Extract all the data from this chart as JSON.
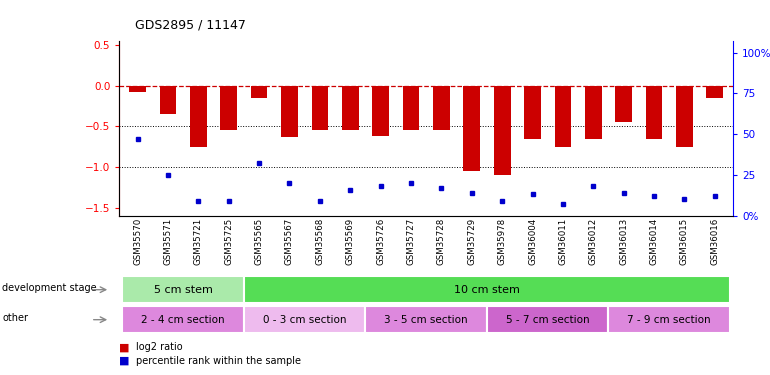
{
  "title": "GDS2895 / 11147",
  "samples": [
    "GSM35570",
    "GSM35571",
    "GSM35721",
    "GSM35725",
    "GSM35565",
    "GSM35567",
    "GSM35568",
    "GSM35569",
    "GSM35726",
    "GSM35727",
    "GSM35728",
    "GSM35729",
    "GSM35978",
    "GSM36004",
    "GSM36011",
    "GSM36012",
    "GSM36013",
    "GSM36014",
    "GSM36015",
    "GSM36016"
  ],
  "log2_ratio": [
    -0.07,
    -0.35,
    -0.75,
    -0.55,
    -0.15,
    -0.63,
    -0.55,
    -0.55,
    -0.62,
    -0.55,
    -0.55,
    -1.05,
    -1.1,
    -0.65,
    -0.75,
    -0.65,
    -0.45,
    -0.65,
    -0.75,
    -0.15
  ],
  "percentile": [
    47,
    25,
    9,
    9,
    32,
    20,
    9,
    16,
    18,
    20,
    17,
    14,
    9,
    13,
    7,
    18,
    14,
    12,
    10,
    12
  ],
  "ylim_left": [
    -1.6,
    0.55
  ],
  "ylim_right": [
    0,
    107
  ],
  "bar_color": "#cc0000",
  "dot_color": "#0000cc",
  "hline_color": "#cc0000",
  "dev_stage_groups": [
    {
      "label": "5 cm stem",
      "start": 0,
      "end": 4,
      "color": "#aaeaaa"
    },
    {
      "label": "10 cm stem",
      "start": 4,
      "end": 20,
      "color": "#55dd55"
    }
  ],
  "other_groups": [
    {
      "label": "2 - 4 cm section",
      "start": 0,
      "end": 4,
      "color": "#dd88dd"
    },
    {
      "label": "0 - 3 cm section",
      "start": 4,
      "end": 8,
      "color": "#eebbee"
    },
    {
      "label": "3 - 5 cm section",
      "start": 8,
      "end": 12,
      "color": "#dd88dd"
    },
    {
      "label": "5 - 7 cm section",
      "start": 12,
      "end": 16,
      "color": "#cc66cc"
    },
    {
      "label": "7 - 9 cm section",
      "start": 16,
      "end": 20,
      "color": "#dd88dd"
    }
  ],
  "tick_bg_color": "#cccccc",
  "label_dev": "development stage",
  "label_other": "other",
  "legend_items": [
    {
      "label": "log2 ratio",
      "color": "#cc0000"
    },
    {
      "label": "percentile rank within the sample",
      "color": "#0000cc"
    }
  ]
}
